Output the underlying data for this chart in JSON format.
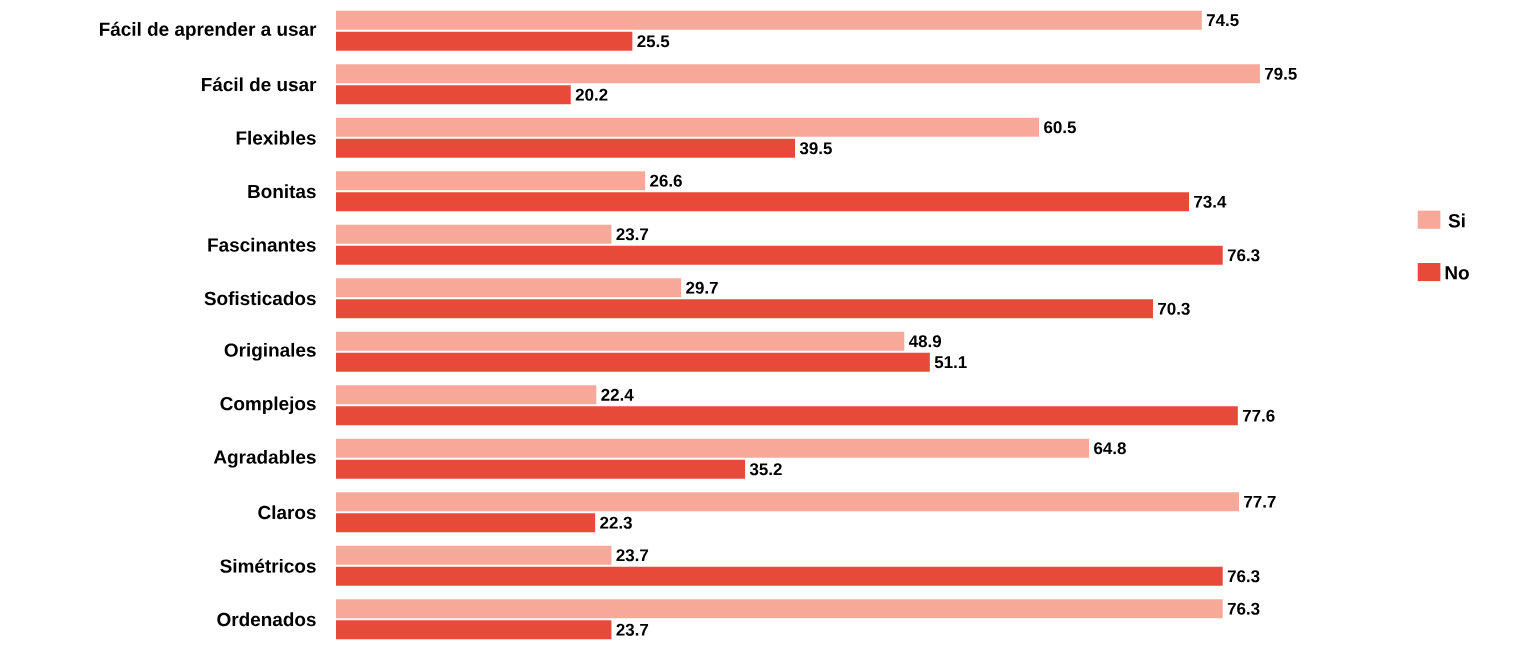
{
  "chart_data": {
    "type": "bar",
    "orientation": "horizontal",
    "data_labels": true,
    "legend": "right",
    "categories": [
      "Fácil de aprender a usar",
      "Fácil de usar",
      "Flexibles",
      "Bonitas",
      "Fascinantes",
      "Sofisticados",
      "Originales",
      "Complejos",
      "Agradables",
      "Claros",
      "Simétricos",
      "Ordenados"
    ],
    "series": [
      {
        "name": "Si",
        "color": "#f7a898",
        "values": [
          74.5,
          79.5,
          60.5,
          26.6,
          23.7,
          29.7,
          48.9,
          22.4,
          64.8,
          77.7,
          23.7,
          76.3
        ]
      },
      {
        "name": "No",
        "color": "#e84a3a",
        "values": [
          25.5,
          20.2,
          39.5,
          73.4,
          76.3,
          70.3,
          51.1,
          77.6,
          35.2,
          22.3,
          76.3,
          23.7
        ]
      }
    ]
  }
}
